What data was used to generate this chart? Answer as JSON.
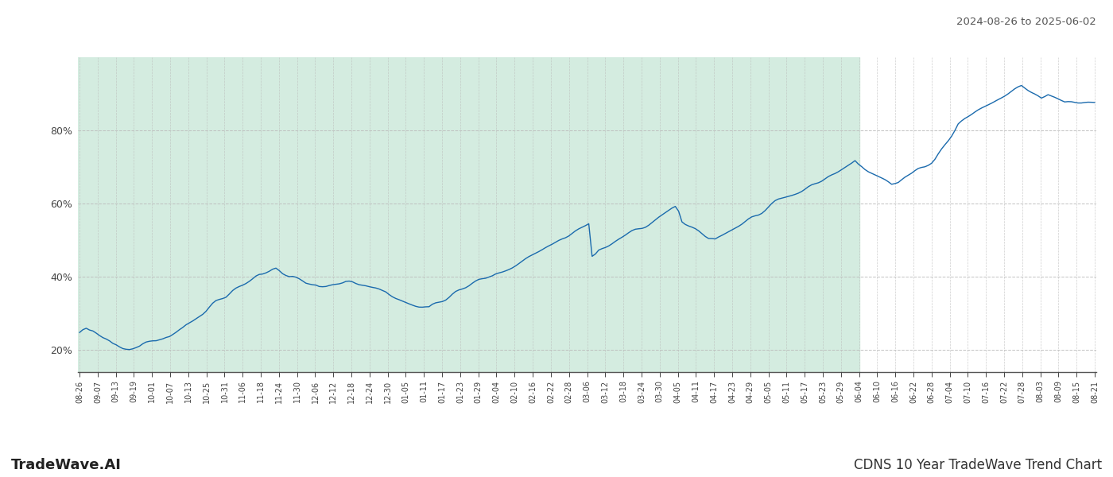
{
  "title_right": "2024-08-26 to 2025-06-02",
  "footer_left": "TradeWave.AI",
  "footer_right": "CDNS 10 Year TradeWave Trend Chart",
  "y_ticks": [
    20,
    40,
    60,
    80
  ],
  "y_min": 14,
  "y_max": 100,
  "line_color": "#1a6aad",
  "shaded_color": "#d4ece0",
  "grid_color": "#bbbbbb",
  "background_color": "#ffffff",
  "x_labels": [
    "08-26",
    "09-07",
    "09-13",
    "09-19",
    "10-01",
    "10-07",
    "10-13",
    "10-25",
    "10-31",
    "11-06",
    "11-18",
    "11-24",
    "11-30",
    "12-06",
    "12-12",
    "12-18",
    "12-24",
    "12-30",
    "01-05",
    "01-11",
    "01-17",
    "01-23",
    "01-29",
    "02-04",
    "02-10",
    "02-16",
    "02-22",
    "02-28",
    "03-06",
    "03-12",
    "03-18",
    "03-24",
    "03-30",
    "04-05",
    "04-11",
    "04-17",
    "04-23",
    "04-29",
    "05-05",
    "05-11",
    "05-17",
    "05-23",
    "05-29",
    "06-04",
    "06-10",
    "06-16",
    "06-22",
    "06-28",
    "07-04",
    "07-10",
    "07-16",
    "07-22",
    "07-28",
    "08-03",
    "08-09",
    "08-15",
    "08-21"
  ],
  "shade_end_label": "06-04",
  "values": [
    24.5,
    25.2,
    25.5,
    25.0,
    24.8,
    24.2,
    23.5,
    23.0,
    22.8,
    22.5,
    22.0,
    21.8,
    21.5,
    21.3,
    21.2,
    21.0,
    21.0,
    21.2,
    21.5,
    22.0,
    22.3,
    22.5,
    22.8,
    23.0,
    23.3,
    23.5,
    23.8,
    24.0,
    24.5,
    25.0,
    25.5,
    26.0,
    26.8,
    27.5,
    28.2,
    29.0,
    29.8,
    30.5,
    31.2,
    32.0,
    32.8,
    33.5,
    34.0,
    34.5,
    35.0,
    35.8,
    36.5,
    37.0,
    37.5,
    38.0,
    38.5,
    39.0,
    39.5,
    40.0,
    40.3,
    40.5,
    41.0,
    41.5,
    42.0,
    42.3,
    41.8,
    41.2,
    40.8,
    40.3,
    40.0,
    39.5,
    39.0,
    38.5,
    38.0,
    37.8,
    37.5,
    37.3,
    37.0,
    37.2,
    37.5,
    37.8,
    38.0,
    38.2,
    38.5,
    38.8,
    39.0,
    38.8,
    38.5,
    38.2,
    38.0,
    37.8,
    37.5,
    37.2,
    37.0,
    36.8,
    36.5,
    36.2,
    36.0,
    35.5,
    35.0,
    34.5,
    34.0,
    33.5,
    33.2,
    33.0,
    32.8,
    32.5,
    32.2,
    32.0,
    31.8,
    31.5,
    32.0,
    32.5,
    33.0,
    33.5,
    34.0,
    34.5,
    35.0,
    35.5,
    36.0,
    36.5,
    37.0,
    37.5,
    38.0,
    38.5,
    39.0,
    39.3,
    39.5,
    39.8,
    40.0,
    40.5,
    41.0,
    41.5,
    42.0,
    42.5,
    43.0,
    43.5,
    44.0,
    44.5,
    45.0,
    45.5,
    46.0,
    46.5,
    47.0,
    47.5,
    48.0,
    48.5,
    49.0,
    49.5,
    50.0,
    50.5,
    51.0,
    51.5,
    52.0,
    52.5,
    53.0,
    53.5,
    54.0,
    54.5,
    45.5,
    46.0,
    47.0,
    47.5,
    48.0,
    48.5,
    49.0,
    49.5,
    50.0,
    50.5,
    51.0,
    51.5,
    52.0,
    52.5,
    53.0,
    53.5,
    54.0,
    54.5,
    55.0,
    55.5,
    56.0,
    56.5,
    57.0,
    57.5,
    58.0,
    58.5,
    57.5,
    55.0,
    54.5,
    54.0,
    53.5,
    53.0,
    52.5,
    52.0,
    51.5,
    51.0,
    50.8,
    50.5,
    51.0,
    51.5,
    52.0,
    52.5,
    53.0,
    53.5,
    54.0,
    54.5,
    55.0,
    55.5,
    56.0,
    56.5,
    57.0,
    57.5,
    58.0,
    58.5,
    59.0,
    59.5,
    60.0,
    60.5,
    61.0,
    61.5,
    62.0,
    62.5,
    63.0,
    63.5,
    64.0,
    64.5,
    65.0,
    65.5,
    66.0,
    66.5,
    67.0,
    67.5,
    68.0,
    68.5,
    69.0,
    69.5,
    70.0,
    70.5,
    71.0,
    71.5,
    70.5,
    70.0,
    69.5,
    69.0,
    68.5,
    68.0,
    67.5,
    67.0,
    66.5,
    66.0,
    65.5,
    65.8,
    66.0,
    66.5,
    67.0,
    67.5,
    68.0,
    68.5,
    69.0,
    69.5,
    70.0,
    70.5,
    71.0,
    72.0,
    73.5,
    75.0,
    76.5,
    78.0,
    79.5,
    81.0,
    82.5,
    83.0,
    83.5,
    84.0,
    84.5,
    85.0,
    85.5,
    86.0,
    86.5,
    87.0,
    87.5,
    88.0,
    88.5,
    89.0,
    89.5,
    90.0,
    90.5,
    91.0,
    91.5,
    92.0,
    91.5,
    91.0,
    90.5,
    90.0,
    89.5,
    89.0,
    89.5,
    90.0,
    89.5,
    89.0,
    88.5,
    88.0,
    87.5,
    87.5,
    87.5,
    87.5,
    87.5,
    87.5,
    87.5,
    87.5,
    87.5,
    87.5
  ]
}
